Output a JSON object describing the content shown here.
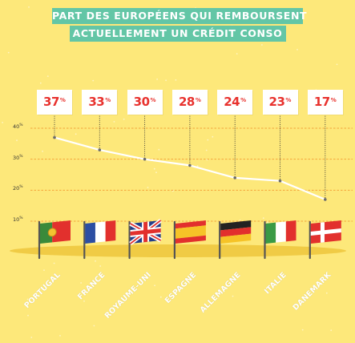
{
  "title": {
    "line1": "PART DES EUROPÉENS QUI REMBOURSENT",
    "line2": "ACTUELLEMENT UN CRÉDIT CONSO"
  },
  "colors": {
    "background": "#fde87a",
    "title_banner": "#63c6a6",
    "value_text": "#e8322e",
    "grid_line": "#f4a33a",
    "data_line": "#ffffff"
  },
  "chart_data": {
    "type": "line",
    "title": "PART DES EUROPÉENS QUI REMBOURSENT ACTUELLEMENT UN CRÉDIT CONSO",
    "categories": [
      "PORTUGAL",
      "FRANCE",
      "ROYAUME-UNI",
      "ESPAGNE",
      "ALLEMAGNE",
      "ITALIE",
      "DANEMARK"
    ],
    "values": [
      37,
      33,
      30,
      28,
      24,
      23,
      17
    ],
    "value_labels": [
      "37",
      "33",
      "30",
      "28",
      "24",
      "23",
      "17"
    ],
    "value_suffix": "%",
    "yticks": [
      {
        "value": 40,
        "label": "40"
      },
      {
        "value": 30,
        "label": "30"
      },
      {
        "value": 20,
        "label": "20"
      },
      {
        "value": 10,
        "label": "10"
      }
    ],
    "ylim": [
      10,
      40
    ],
    "grid": true,
    "flags": [
      "portugal-flag-icon",
      "france-flag-icon",
      "uk-flag-icon",
      "spain-flag-icon",
      "germany-flag-icon",
      "italy-flag-icon",
      "denmark-flag-icon"
    ]
  }
}
